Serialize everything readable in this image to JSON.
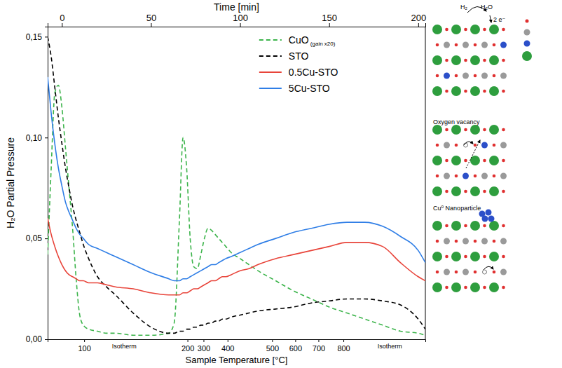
{
  "chart_data": {
    "type": "line",
    "xlabel": "Time [min]",
    "x2label": "Sample Temperature [°C]",
    "ylabel": "H₂O Partial Pressure",
    "x": [
      -8,
      -6,
      -4,
      -2,
      0,
      2,
      4,
      6,
      8,
      10,
      12,
      15,
      20,
      25,
      30,
      40,
      50,
      60,
      63,
      66,
      68,
      70,
      72,
      74,
      76,
      78,
      80,
      82,
      84,
      86,
      88,
      90,
      92,
      95,
      100,
      105,
      110,
      120,
      130,
      140,
      150,
      160,
      170,
      180,
      190,
      200,
      204
    ],
    "series": [
      {
        "name": "CuO (gain x20)",
        "color": "#3cb44b",
        "line_style": "dashed",
        "values": [
          0.042,
          0.085,
          0.122,
          0.126,
          0.115,
          0.095,
          0.075,
          0.055,
          0.03,
          0.012,
          0.007,
          0.005,
          0.004,
          0.003,
          0.003,
          0.002,
          0.002,
          0.003,
          0.008,
          0.06,
          0.1,
          0.085,
          0.05,
          0.036,
          0.035,
          0.042,
          0.05,
          0.055,
          0.054,
          0.052,
          0.05,
          0.048,
          0.046,
          0.043,
          0.04,
          0.037,
          0.034,
          0.029,
          0.024,
          0.02,
          0.016,
          0.013,
          0.01,
          0.007,
          0.004,
          0.003,
          0.002
        ]
      },
      {
        "name": "STO",
        "color": "#000000",
        "line_style": "dashed",
        "values": [
          0.15,
          0.14,
          0.125,
          0.11,
          0.097,
          0.085,
          0.075,
          0.066,
          0.059,
          0.053,
          0.047,
          0.04,
          0.031,
          0.026,
          0.022,
          0.013,
          0.006,
          0.003,
          0.003,
          0.004,
          0.004,
          0.005,
          0.005,
          0.006,
          0.006,
          0.007,
          0.007,
          0.008,
          0.008,
          0.009,
          0.009,
          0.01,
          0.01,
          0.011,
          0.012,
          0.013,
          0.014,
          0.015,
          0.016,
          0.018,
          0.019,
          0.02,
          0.02,
          0.019,
          0.017,
          0.01,
          0.005
        ]
      },
      {
        "name": "0.5Cu-STO",
        "color": "#e8443a",
        "line_style": "solid",
        "values": [
          0.06,
          0.052,
          0.046,
          0.041,
          0.037,
          0.034,
          0.032,
          0.031,
          0.03,
          0.029,
          0.029,
          0.028,
          0.028,
          0.027,
          0.026,
          0.025,
          0.023,
          0.022,
          0.022,
          0.022,
          0.023,
          0.023,
          0.024,
          0.025,
          0.025,
          0.026,
          0.027,
          0.028,
          0.029,
          0.029,
          0.03,
          0.031,
          0.031,
          0.032,
          0.034,
          0.035,
          0.037,
          0.04,
          0.042,
          0.044,
          0.046,
          0.048,
          0.048,
          0.046,
          0.038,
          0.031,
          0.029
        ]
      },
      {
        "name": "5Cu-STO",
        "color": "#2f7ee6",
        "line_style": "solid",
        "values": [
          0.13,
          0.112,
          0.097,
          0.085,
          0.076,
          0.068,
          0.063,
          0.059,
          0.055,
          0.052,
          0.05,
          0.047,
          0.045,
          0.043,
          0.041,
          0.037,
          0.033,
          0.03,
          0.029,
          0.029,
          0.03,
          0.03,
          0.031,
          0.032,
          0.033,
          0.034,
          0.035,
          0.036,
          0.037,
          0.037,
          0.038,
          0.039,
          0.04,
          0.041,
          0.043,
          0.045,
          0.047,
          0.05,
          0.053,
          0.055,
          0.057,
          0.058,
          0.058,
          0.056,
          0.051,
          0.044,
          0.038
        ]
      }
    ],
    "xlim": [
      -8,
      204
    ],
    "xticks": [
      0,
      50,
      100,
      150,
      200
    ],
    "x2ticks": [
      {
        "value": 12.5,
        "label": "100"
      },
      {
        "value": 70.5,
        "label": "200"
      },
      {
        "value": 79.5,
        "label": "300"
      },
      {
        "value": 93,
        "label": "400"
      },
      {
        "value": 118,
        "label": "500"
      },
      {
        "value": 131,
        "label": "600"
      },
      {
        "value": 144,
        "label": "700"
      },
      {
        "value": 158,
        "label": "800"
      }
    ],
    "ylim": [
      0,
      0.155
    ],
    "yticks": [
      {
        "value": 0,
        "label": "0,00"
      },
      {
        "value": 0.05,
        "label": "0,05"
      },
      {
        "value": 0.1,
        "label": "0,10"
      },
      {
        "value": 0.15,
        "label": "0,15"
      }
    ],
    "annotations": [
      {
        "text": "Isotherm",
        "x": 35
      },
      {
        "text": "Isotherm",
        "x": 184
      }
    ],
    "grid": false,
    "legend": "top"
  },
  "diagram": {
    "labels": [
      "H₂",
      "H₂O",
      "2 e⁻",
      "Oxygen vacancy",
      "Cu⁰ Nanoparticle"
    ]
  }
}
